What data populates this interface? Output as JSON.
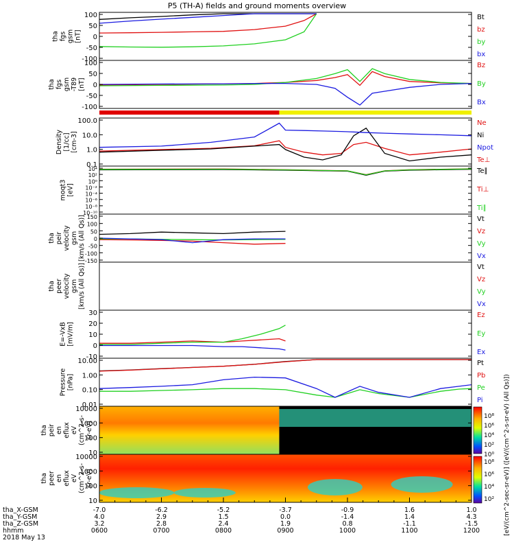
{
  "title": "P5 (TH-A) fields and ground moments overview",
  "colors": {
    "black": "#000000",
    "red": "#e01010",
    "green": "#20d020",
    "blue": "#1a1ae0",
    "yellow": "#f0f000",
    "mode_red": "#e00000"
  },
  "panels": [
    {
      "id": "fgs-gsm",
      "ylabel_lines": [
        "tha",
        "fgs",
        "gsm",
        "[nT]"
      ],
      "yticks": [
        "100",
        "50",
        "0",
        "-50",
        "-100"
      ],
      "legend": [
        {
          "text": "Bt",
          "color": "black"
        },
        {
          "text": "bz",
          "color": "red"
        },
        {
          "text": "by",
          "color": "green"
        },
        {
          "text": "bx",
          "color": "blue"
        }
      ]
    },
    {
      "id": "fgs-gsm-t89",
      "ylabel_lines": [
        "tha",
        "fgs",
        "gsm",
        "-T89",
        "[nT]"
      ],
      "yticks": [
        "100",
        "50",
        "0",
        "-50",
        "-100"
      ],
      "legend": [
        {
          "text": "Bz",
          "color": "red"
        },
        {
          "text": "By",
          "color": "green"
        },
        {
          "text": "Bx",
          "color": "blue"
        }
      ]
    },
    {
      "id": "density",
      "ylabel_lines": [
        "Density",
        "[1/cc]",
        "[cm-3]"
      ],
      "yticks": [
        "100.0",
        "10.0",
        "1.0",
        "0.1"
      ],
      "legend": [
        {
          "text": "Ne",
          "color": "red"
        },
        {
          "text": "Ni",
          "color": "black"
        },
        {
          "text": "Npot",
          "color": "blue"
        },
        {
          "text": "Te⊥",
          "color": "red"
        }
      ]
    },
    {
      "id": "temperature",
      "ylabel_lines": [
        "moqt3",
        "[eV]"
      ],
      "yticks": [
        "10⁴",
        "10²",
        "10⁰",
        "10⁻²",
        "10⁻⁴",
        "10⁻⁶",
        "10⁻⁸",
        "10⁻¹⁰"
      ],
      "legend": [
        {
          "text": "Te∥",
          "color": "black"
        },
        {
          "text": "Ti⊥",
          "color": "red"
        },
        {
          "text": "Ti∥",
          "color": "green"
        }
      ]
    },
    {
      "id": "peir-velocity",
      "ylabel_lines": [
        "tha",
        "peir",
        "velocity",
        "gsm",
        "[km/s (All Qs)]"
      ],
      "yticks": [
        "150",
        "100",
        "50",
        "0",
        "-50",
        "-100",
        "-150"
      ],
      "legend": [
        {
          "text": "Vt",
          "color": "black"
        },
        {
          "text": "Vz",
          "color": "red"
        },
        {
          "text": "Vy",
          "color": "green"
        },
        {
          "text": "Vx",
          "color": "blue"
        }
      ]
    },
    {
      "id": "peer-velocity",
      "ylabel_lines": [
        "tha",
        "peer",
        "velocity",
        "gsm",
        "[km/s (All Qs)]"
      ],
      "yticks": [],
      "legend": [
        {
          "text": "Vt",
          "color": "black"
        },
        {
          "text": "Vz",
          "color": "red"
        },
        {
          "text": "Vy",
          "color": "green"
        },
        {
          "text": "Vx",
          "color": "blue"
        }
      ]
    },
    {
      "id": "efield",
      "ylabel_lines": [
        "E=-VxB",
        "[mV/m]"
      ],
      "yticks": [
        "30",
        "20",
        "10",
        "0",
        "-10"
      ],
      "legend": [
        {
          "text": "Ez",
          "color": "red"
        },
        {
          "text": "Ey",
          "color": "green"
        },
        {
          "text": "Ex",
          "color": "blue"
        }
      ]
    },
    {
      "id": "pressure",
      "ylabel_lines": [
        "Pressure",
        "[nPa]"
      ],
      "yticks": [
        "10.00",
        "1.00",
        "0.10",
        "0.01"
      ],
      "legend": [
        {
          "text": "Pt",
          "color": "black"
        },
        {
          "text": "Pb",
          "color": "red"
        },
        {
          "text": "Pe",
          "color": "green"
        },
        {
          "text": "Pi",
          "color": "blue"
        }
      ]
    },
    {
      "id": "peir-eflux",
      "ylabel_lines": [
        "tha",
        "peir",
        "en",
        "eflux",
        "eV",
        "(cm^2-s-",
        "sr-eV)"
      ],
      "yticks": [
        "10000",
        "1000",
        "100",
        "10"
      ],
      "legend": []
    },
    {
      "id": "peer-eflux",
      "ylabel_lines": [
        "tha",
        "peer",
        "en",
        "eflux",
        "eV",
        "(cm^2-s-",
        "sr-eV)"
      ],
      "yticks": [
        "10000",
        "1000",
        "100",
        "10"
      ],
      "legend": []
    }
  ],
  "colorbar": {
    "label": "[eV/(cm^2-sec-sr-eV)] ([eV/(cm^2-s-sr-eV) (All Qs)])",
    "ticks_top": [
      "10⁸",
      "10⁶",
      "10⁴",
      "10²",
      "10⁰"
    ],
    "ticks_bottom": [
      "10⁸",
      "10⁶",
      "10⁴",
      "10²"
    ]
  },
  "x_axis": {
    "rows": [
      {
        "label": "tha_X-GSM",
        "values": [
          "-7.0",
          "-6.2",
          "-5.2",
          "-3.7",
          "-0.9",
          "1.6",
          "1.0"
        ]
      },
      {
        "label": "tha_Y-GSM",
        "values": [
          "4.0",
          "2.9",
          "1.5",
          "0.0",
          "-1.4",
          "1.4",
          "4.3"
        ]
      },
      {
        "label": "tha_Z-GSM",
        "values": [
          "3.2",
          "2.8",
          "2.4",
          "1.9",
          "0.8",
          "-1.1",
          "-1.5"
        ]
      },
      {
        "label": "hhmm",
        "values": [
          "0600",
          "0700",
          "0800",
          "0900",
          "1000",
          "1100",
          "1200"
        ]
      }
    ],
    "date": "2018 May 13"
  },
  "chart_data": {
    "type": "line",
    "title": "P5 (TH-A) fields and ground moments overview",
    "x_ticks_hhmm": [
      "0600",
      "0700",
      "0800",
      "0900",
      "1000",
      "1100",
      "1200"
    ],
    "x_range_hours": [
      6,
      12
    ],
    "panels": [
      {
        "name": "tha fgs gsm",
        "units": "nT",
        "ylim": [
          -100,
          100
        ],
        "x": [
          6.0,
          6.5,
          7.0,
          7.5,
          8.0,
          8.5,
          9.0,
          9.3,
          9.5
        ],
        "series": [
          {
            "name": "Bt",
            "values": [
              75,
              82,
              88,
              95,
              100,
              100,
              100,
              100,
              100
            ]
          },
          {
            "name": "bz",
            "values": [
              15,
              16,
              18,
              20,
              22,
              30,
              45,
              70,
              100
            ]
          },
          {
            "name": "by",
            "values": [
              -45,
              -47,
              -48,
              -46,
              -42,
              -33,
              -15,
              20,
              100
            ]
          },
          {
            "name": "bx",
            "values": [
              58,
              68,
              76,
              84,
              92,
              100,
              100,
              100,
              100
            ]
          }
        ]
      },
      {
        "name": "tha fgs gsm-T89",
        "units": "nT",
        "ylim": [
          -120,
          110
        ],
        "x": [
          6.0,
          7.0,
          8.0,
          8.5,
          9.0,
          9.5,
          9.8,
          10.0,
          10.2,
          10.4,
          10.6,
          11.0,
          11.5,
          12.0
        ],
        "series": [
          {
            "name": "Bz",
            "values": [
              -8,
              -5,
              -2,
              0,
              5,
              15,
              30,
              45,
              -10,
              60,
              35,
              10,
              3,
              0
            ]
          },
          {
            "name": "By",
            "values": [
              -12,
              -10,
              -8,
              -5,
              5,
              25,
              50,
              70,
              10,
              75,
              50,
              20,
              5,
              0
            ]
          },
          {
            "name": "Bx",
            "values": [
              -5,
              -3,
              -2,
              0,
              0,
              -5,
              -25,
              -70,
              -110,
              -50,
              -40,
              -20,
              -5,
              0
            ]
          }
        ]
      },
      {
        "name": "Density",
        "units": "1/cc",
        "scale": "log",
        "ylim": [
          0.05,
          200
        ],
        "x": [
          6.0,
          7.0,
          7.8,
          8.5,
          8.9,
          9.0,
          9.3,
          9.6,
          9.9,
          10.1,
          10.3,
          10.6,
          11.0,
          11.5,
          12.0
        ],
        "series": [
          {
            "name": "Ne",
            "values": [
              0.6,
              0.8,
              1.0,
              1.6,
              4.0,
              1.2,
              0.5,
              0.3,
              0.4,
              2.0,
              3.0,
              1.0,
              0.3,
              0.5,
              0.9
            ]
          },
          {
            "name": "Ni",
            "values": [
              0.5,
              0.7,
              0.9,
              1.5,
              2.0,
              0.8,
              0.2,
              0.12,
              0.3,
              10.0,
              40.0,
              0.4,
              0.1,
              0.2,
              0.3
            ]
          },
          {
            "name": "Npot",
            "values": [
              1.2,
              1.5,
              3.0,
              8.0,
              100.0,
              28.0,
              26.0,
              24.0,
              22.0,
              20.0,
              18.0,
              16.0,
              14.0,
              12.0,
              10.0
            ]
          }
        ]
      },
      {
        "name": "Temperature",
        "units": "eV",
        "scale": "log",
        "ylim": [
          1e-10,
          10000.0
        ],
        "x": [
          6.0,
          8.0,
          9.0,
          10.0,
          10.3,
          10.6,
          11.0,
          12.0
        ],
        "series": [
          {
            "name": "Te⊥",
            "values": [
              2000,
              2500,
              1500,
              800,
              50,
              800,
              1500,
              3000
            ]
          },
          {
            "name": "Te∥",
            "values": [
              1800,
              2200,
              1400,
              700,
              40,
              700,
              1400,
              2800
            ]
          },
          {
            "name": "Ti⊥",
            "values": [
              3000,
              3500,
              2000,
              900,
              60,
              900,
              2000,
              4000
            ]
          },
          {
            "name": "Ti∥",
            "values": [
              2500,
              3000,
              1800,
              850,
              55,
              850,
              1800,
              3500
            ]
          }
        ]
      },
      {
        "name": "tha peir velocity gsm",
        "units": "km/s (All Qs)",
        "ylim": [
          -150,
          150
        ],
        "x": [
          6.0,
          6.5,
          7.0,
          7.5,
          8.0,
          8.5,
          9.0
        ],
        "series": [
          {
            "name": "Vt",
            "values": [
              25,
              30,
              40,
              35,
              30,
              40,
              45
            ]
          },
          {
            "name": "Vz",
            "values": [
              -10,
              -12,
              -15,
              -20,
              -30,
              -40,
              -35
            ]
          },
          {
            "name": "Vy",
            "values": [
              -5,
              -5,
              -8,
              -10,
              -12,
              -10,
              -8
            ]
          },
          {
            "name": "Vx",
            "values": [
              0,
              -5,
              -10,
              -30,
              -10,
              -5,
              -5
            ]
          }
        ]
      },
      {
        "name": "E=-VxB",
        "units": "mV/m",
        "ylim": [
          -10,
          30
        ],
        "x": [
          6.0,
          6.5,
          7.0,
          7.5,
          8.0,
          8.3,
          8.6,
          8.9,
          9.0
        ],
        "series": [
          {
            "name": "Ez",
            "values": [
              2,
              2,
              3,
              4,
              3,
              4,
              5,
              6,
              4
            ]
          },
          {
            "name": "Ey",
            "values": [
              1,
              1,
              2,
              3,
              3,
              6,
              10,
              15,
              18
            ]
          },
          {
            "name": "Ex",
            "values": [
              0,
              0,
              0,
              0,
              -1,
              -1,
              -2,
              -3,
              -4
            ]
          }
        ]
      },
      {
        "name": "Pressure",
        "units": "nPa",
        "scale": "log",
        "ylim": [
          0.005,
          20
        ],
        "x": [
          6.0,
          6.5,
          7.0,
          7.5,
          8.0,
          8.5,
          9.0,
          9.5,
          9.8,
          10.2,
          10.5,
          11.0,
          11.5,
          11.8,
          12.0
        ],
        "series": [
          {
            "name": "Pt",
            "values": [
              2.5,
              3.0,
              3.8,
              4.8,
              6.0,
              8.5,
              14.0,
              20.0,
              20.0,
              20.0,
              20.0,
              20.0,
              20.0,
              20.0,
              20.0
            ]
          },
          {
            "name": "Pb",
            "values": [
              2.4,
              2.9,
              3.7,
              4.7,
              5.9,
              8.4,
              13.5,
              20.0,
              20.0,
              20.0,
              20.0,
              20.0,
              20.0,
              20.0,
              20.0
            ]
          },
          {
            "name": "Pe",
            "values": [
              0.06,
              0.06,
              0.07,
              0.08,
              0.1,
              0.1,
              0.08,
              0.03,
              0.02,
              0.08,
              0.04,
              0.02,
              0.06,
              0.09,
              0.1
            ]
          },
          {
            "name": "Pi",
            "values": [
              0.1,
              0.12,
              0.15,
              0.2,
              0.5,
              0.8,
              0.7,
              0.1,
              0.02,
              0.15,
              0.05,
              0.02,
              0.1,
              0.15,
              0.2
            ]
          }
        ]
      }
    ]
  }
}
